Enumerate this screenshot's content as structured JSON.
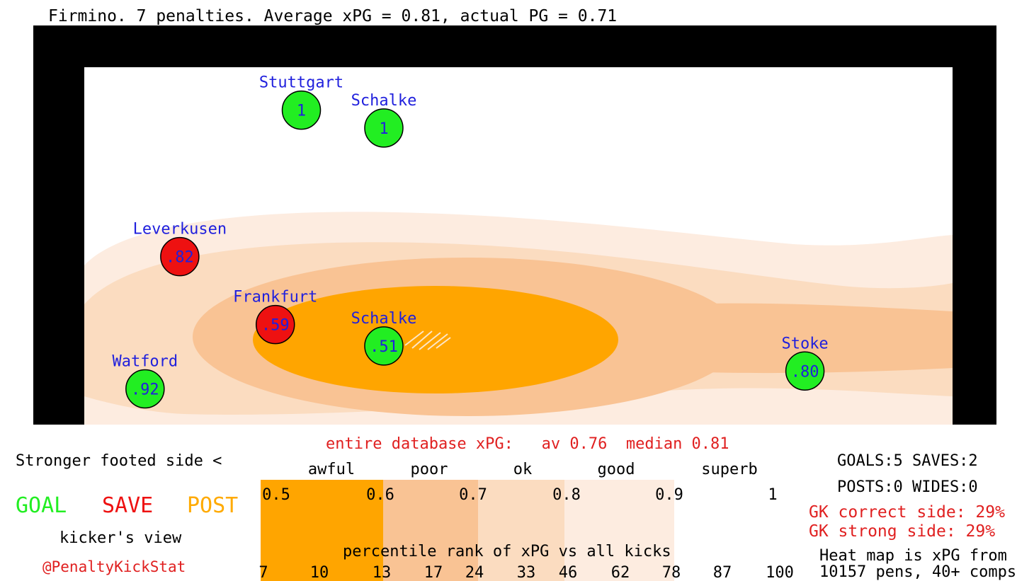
{
  "title": "Firmino. 7 penalties. Average xPG = 0.81, actual PG = 0.71",
  "chart_data": {
    "type": "scatter",
    "title": "Firmino. 7 penalties. Average xPG = 0.81, actual PG = 0.71",
    "background": "heatmap",
    "points": [
      {
        "label": "Stuttgart",
        "value": "1",
        "outcome": "GOAL",
        "x": 0.25,
        "y": 0.88
      },
      {
        "label": "Schalke",
        "value": "1",
        "outcome": "GOAL",
        "x": 0.345,
        "y": 0.83
      },
      {
        "label": "Leverkusen",
        "value": ".82",
        "outcome": "SAVE",
        "x": 0.11,
        "y": 0.47
      },
      {
        "label": "Frankfurt",
        "value": ".59",
        "outcome": "SAVE",
        "x": 0.22,
        "y": 0.28
      },
      {
        "label": "Schalke",
        "value": ".51",
        "outcome": "GOAL",
        "x": 0.345,
        "y": 0.22
      },
      {
        "label": "Watford",
        "value": ".92",
        "outcome": "GOAL",
        "x": 0.07,
        "y": 0.1
      },
      {
        "label": "Stoke",
        "value": ".80",
        "outcome": "GOAL",
        "x": 0.83,
        "y": 0.15
      }
    ]
  },
  "legend": {
    "stronger_side": "Stronger footed side <",
    "goal": "GOAL",
    "save": "SAVE",
    "post": "POST",
    "view": "kicker's view",
    "credit": "@PenaltyKickStat"
  },
  "scale": {
    "header": "entire database xPG:   av 0.76  median 0.81",
    "categories": [
      "awful",
      "poor",
      "ok",
      "good",
      "superb"
    ],
    "ticks": [
      "0.5",
      "0.6",
      "0.7",
      "0.8",
      "0.9",
      "1"
    ],
    "percentile_label": "percentile rank of xPG vs all kicks",
    "percentiles": [
      "7",
      "10",
      "13",
      "17",
      "24",
      "33",
      "46",
      "62",
      "78",
      "87",
      "100"
    ]
  },
  "stats": {
    "line1": "GOALS:5 SAVES:2",
    "line2": "POSTS:0 WIDES:0",
    "gk_correct": "GK correct side: 29%",
    "gk_strong": "GK strong side: 29%",
    "heat1": "Heat map is xPG from",
    "heat2": "10157 pens, 40+ comps"
  },
  "colors": {
    "goal": "#22ee22",
    "save": "#ee1111",
    "post": "#ffaa00",
    "label": "#2020dd",
    "red_text": "#e02020",
    "heat_dark": "#ffa500",
    "heat_mid": "#f9c394",
    "heat_light": "#fbdcc0",
    "heat_pale": "#fdece0"
  }
}
